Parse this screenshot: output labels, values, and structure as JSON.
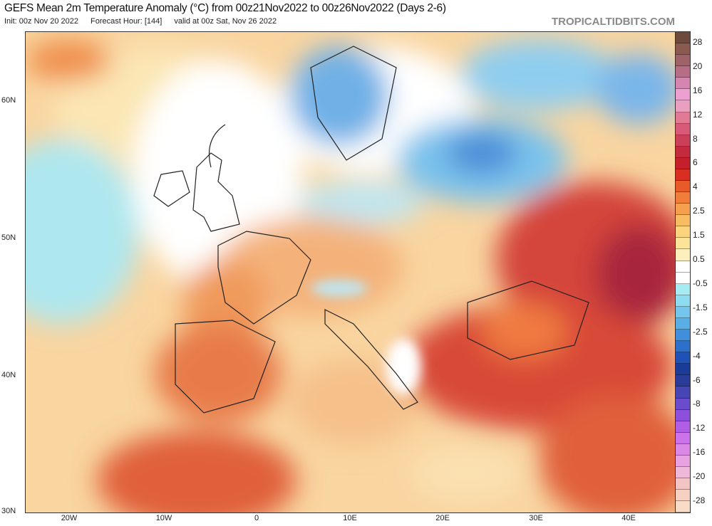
{
  "header": {
    "title": "GEFS Mean 2m Temperature Anomaly (°C) from 00z21Nov2022 to 00z26Nov2022 (Days 2-6)",
    "init": "Init: 00z Nov 20 2022",
    "forecast_hour": "Forecast Hour: [144]",
    "valid": "valid at 00z Sat, Nov 26 2022",
    "brand": "TROPICALTIDBITS.COM"
  },
  "axes": {
    "lat_labels": [
      "60N",
      "50N",
      "40N",
      "30N"
    ],
    "lon_labels": [
      "20W",
      "10W",
      "0",
      "10E",
      "20E",
      "30E",
      "40E"
    ]
  },
  "colorbar": {
    "labels": [
      "28",
      "20",
      "16",
      "12",
      "8",
      "6",
      "4",
      "2.5",
      "1.5",
      "0.5",
      "-0.5",
      "-1.5",
      "-2.5",
      "-4",
      "-6",
      "-8",
      "-12",
      "-16",
      "-20",
      "-28"
    ],
    "colors": [
      "#6e4a3c",
      "#8a5a50",
      "#9e6268",
      "#b86d86",
      "#d585b0",
      "#ec9fd0",
      "#e9a0be",
      "#e27a96",
      "#d85a78",
      "#cc3f58",
      "#c42a3e",
      "#c41f2a",
      "#d92e22",
      "#e85a28",
      "#f07e3a",
      "#f5a04e",
      "#f8bd62",
      "#fad47e",
      "#fbe49a",
      "#fdf0bc",
      "#ffffff",
      "#ffffff",
      "#a8ecf3",
      "#8edcef",
      "#74c6ec",
      "#5aaee6",
      "#3f8fdc",
      "#2c70cc",
      "#1f52b4",
      "#1a3c98",
      "#2a3c9a",
      "#4744b4",
      "#6a4ccc",
      "#8c50dc",
      "#b05ee6",
      "#cc72ea",
      "#dc88e6",
      "#e8a2e2",
      "#eeb8d8",
      "#f2c4c4",
      "#f6d0c0",
      "#f9dcc8"
    ]
  },
  "palette": {
    "base": "#f9d5a0",
    "cyan": "#aee7ef",
    "white": "#ffffff",
    "blue": "#7ac2ec",
    "deepblue": "#4d8ed8",
    "orange": "#f1a263",
    "red": "#e0603a",
    "darkred": "#c8343a",
    "maroon": "#a8283c"
  }
}
